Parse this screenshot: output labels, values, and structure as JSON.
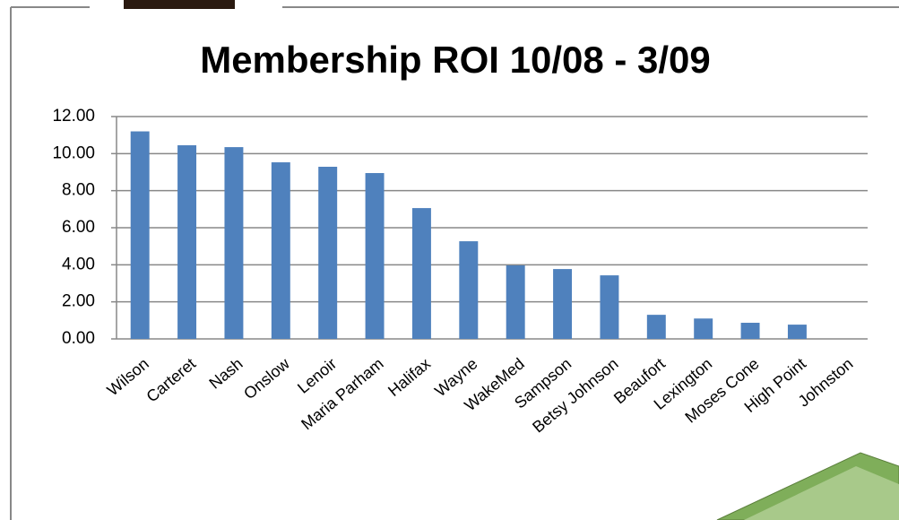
{
  "chart_data": {
    "type": "bar",
    "title": "Membership ROI 10/08 - 3/09",
    "categories": [
      "Wilson",
      "Carteret",
      "Nash",
      "Onslow",
      "Lenoir",
      "Maria Parham",
      "Halifax",
      "Wayne",
      "WakeMed",
      "Sampson",
      "Betsy Johnson",
      "Beaufort",
      "Lexington",
      "Moses Cone",
      "High Point",
      "Johnston"
    ],
    "values": [
      11.2,
      10.45,
      10.35,
      9.53,
      9.29,
      8.95,
      7.06,
      5.27,
      3.97,
      3.77,
      3.43,
      1.3,
      1.1,
      0.87,
      0.77,
      0
    ],
    "color": "#4f81bd",
    "ylim": [
      0,
      12
    ],
    "yticks": [
      {
        "value": 0,
        "label": "0.00"
      },
      {
        "value": 2,
        "label": "2.00"
      },
      {
        "value": 4,
        "label": "4.00"
      },
      {
        "value": 6,
        "label": "6.00"
      },
      {
        "value": 8,
        "label": "8.00"
      },
      {
        "value": 10,
        "label": "10.00"
      },
      {
        "value": 12,
        "label": "12.00"
      }
    ],
    "grid": true
  }
}
